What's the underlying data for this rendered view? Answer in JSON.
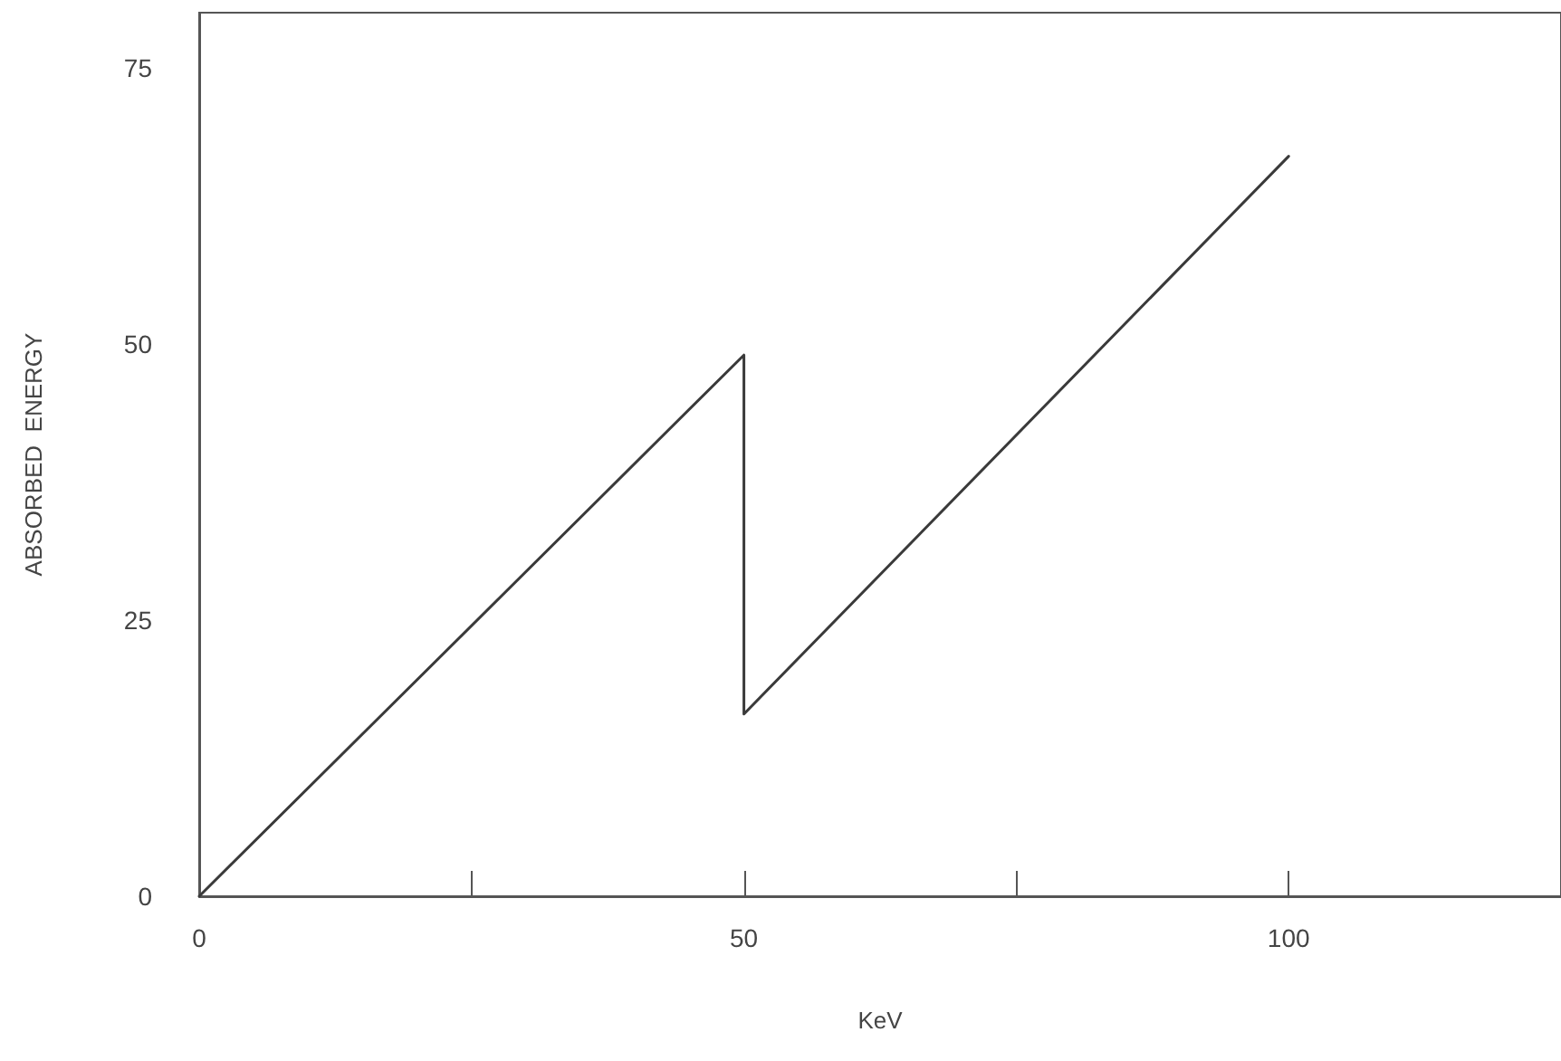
{
  "chart_data": {
    "type": "line",
    "xlabel": "KeV",
    "ylabel": "ABSORBED  ENERGY",
    "x": [
      0,
      50,
      50,
      100
    ],
    "series": [
      {
        "color": "#3a3a3a",
        "values": [
          0,
          49,
          16.5,
          67
        ]
      }
    ],
    "xlim": [
      0,
      125
    ],
    "xticks": [
      0,
      {
        "value": 25,
        "label": null
      },
      50,
      {
        "value": 75,
        "label": null
      },
      100
    ],
    "ylim": [
      0,
      80
    ],
    "yticks": [
      0,
      25,
      50,
      75
    ],
    "grid": false,
    "marker": "none",
    "line_style": "solid"
  }
}
